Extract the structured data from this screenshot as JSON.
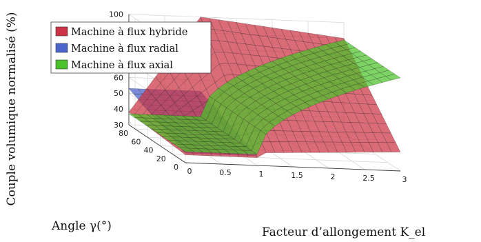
{
  "chart_data": {
    "type": "surface3d",
    "title": "",
    "xlabel": "Facteur d’allongement K_el",
    "ylabel": "Angle γ(°)",
    "zlabel": "Couple volumique normalisé (%)",
    "xlim": [
      0,
      3
    ],
    "ylim": [
      0,
      90
    ],
    "zlim": [
      30,
      100
    ],
    "xticks": [
      "0",
      "0.5",
      "1",
      "1.5",
      "2",
      "2.5",
      "3"
    ],
    "yticks": [
      "0",
      "20",
      "40",
      "60",
      "80"
    ],
    "zticks": [
      "30",
      "40",
      "50",
      "60",
      "70",
      "80",
      "90",
      "100"
    ],
    "grid": true,
    "legend_position": "top-left",
    "series": [
      {
        "name": "Machine à flux hybride",
        "color": "#cc3344",
        "corners": {
          "x0_y0": 35,
          "x3_y0": 42,
          "x0_y90": 38,
          "x1_y90": 100,
          "x3_y90": 90
        },
        "max_at": {
          "x": 1,
          "y": 90,
          "z": 100
        }
      },
      {
        "name": "Machine à flux radial",
        "color": "#4d66cc",
        "corners": {
          "x0_y0": 36,
          "x1_y0": 36,
          "x0_y90": 53,
          "x1_y90": 53
        }
      },
      {
        "name": "Machine à flux axial",
        "color": "#4cc22a",
        "corners": {
          "x0_y0": 37,
          "x1_y0": 37,
          "x3_y0": 89,
          "x0_y90": 37,
          "x1_y90": 37,
          "x3_y90": 89
        }
      }
    ]
  }
}
